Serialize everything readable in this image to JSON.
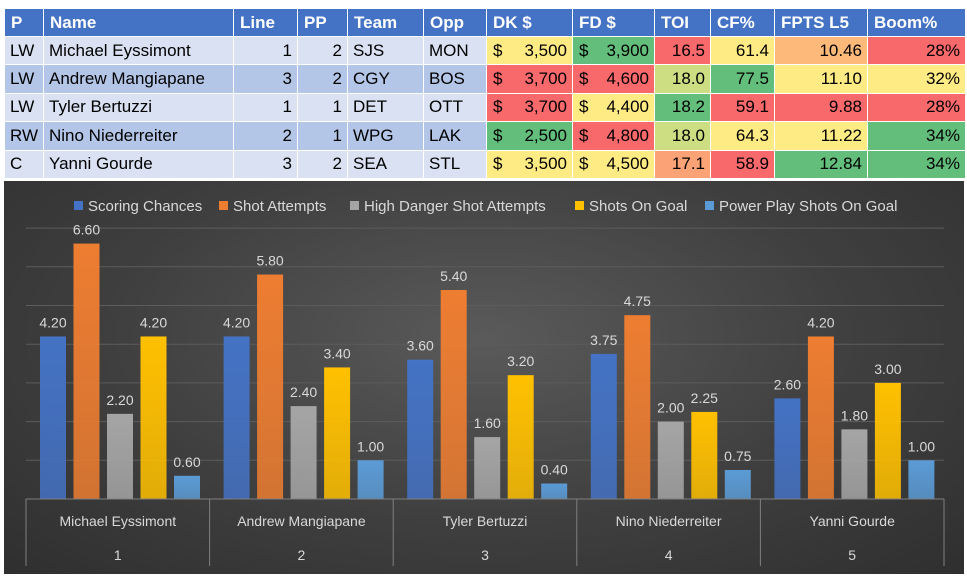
{
  "table": {
    "headers": [
      "P",
      "Name",
      "Line",
      "PP",
      "Team",
      "Opp",
      "DK $",
      "FD $",
      "TOI",
      "CF%",
      "FPTS L5",
      "Boom%"
    ],
    "rows": [
      {
        "pos": "LW",
        "name": "Michael Eyssimont",
        "line": "1",
        "pp": "2",
        "team": "SJS",
        "opp": "MON",
        "dk": "3,500",
        "fd": "3,900",
        "toi": "16.5",
        "cf": "61.4",
        "fpts": "10.46",
        "boom": "28%"
      },
      {
        "pos": "LW",
        "name": "Andrew Mangiapane",
        "line": "3",
        "pp": "2",
        "team": "CGY",
        "opp": "BOS",
        "dk": "3,700",
        "fd": "4,600",
        "toi": "18.0",
        "cf": "77.5",
        "fpts": "11.10",
        "boom": "32%"
      },
      {
        "pos": "LW",
        "name": "Tyler Bertuzzi",
        "line": "1",
        "pp": "1",
        "team": "DET",
        "opp": "OTT",
        "dk": "3,700",
        "fd": "4,400",
        "toi": "18.2",
        "cf": "59.1",
        "fpts": "9.88",
        "boom": "28%"
      },
      {
        "pos": "RW",
        "name": "Nino Niederreiter",
        "line": "2",
        "pp": "1",
        "team": "WPG",
        "opp": "LAK",
        "dk": "2,500",
        "fd": "4,800",
        "toi": "18.0",
        "cf": "64.3",
        "fpts": "11.22",
        "boom": "34%"
      },
      {
        "pos": "C",
        "name": "Yanni Gourde",
        "line": "3",
        "pp": "2",
        "team": "SEA",
        "opp": "STL",
        "dk": "3,500",
        "fd": "4,500",
        "toi": "17.1",
        "cf": "58.9",
        "fpts": "12.84",
        "boom": "34%"
      }
    ],
    "currency_symbol": "$",
    "cell_colors": {
      "dk": [
        "#ffeb84",
        "#f8696b",
        "#f8696b",
        "#63be7b",
        "#ffeb84"
      ],
      "fd": [
        "#63be7b",
        "#f8696b",
        "#ffeb84",
        "#f8696b",
        "#ffeb84"
      ],
      "toi": [
        "#f8696b",
        "#cddd82",
        "#63be7b",
        "#cddd82",
        "#fba276"
      ],
      "cf": [
        "#ffeb84",
        "#63be7b",
        "#f8696b",
        "#ffeb84",
        "#f8696b"
      ],
      "fpts": [
        "#fcb979",
        "#ffeb84",
        "#f8696b",
        "#ffeb84",
        "#63be7b"
      ],
      "boom": [
        "#f8696b",
        "#ffeb84",
        "#f8696b",
        "#63be7b",
        "#63be7b"
      ]
    }
  },
  "chart_data": {
    "type": "bar",
    "title": "",
    "xlabel": "",
    "ylabel": "",
    "ylim": [
      0,
      7
    ],
    "grid": true,
    "legend_position": "top",
    "categories": [
      "Michael Eyssimont",
      "Andrew Mangiapane",
      "Tyler Bertuzzi",
      "Nino Niederreiter",
      "Yanni Gourde"
    ],
    "category_index": [
      "1",
      "2",
      "3",
      "4",
      "5"
    ],
    "series": [
      {
        "name": "Scoring Chances",
        "color": "#4472c4",
        "values": [
          4.2,
          4.2,
          3.6,
          3.75,
          2.6
        ],
        "labels": [
          "4.20",
          "4.20",
          "3.60",
          "3.75",
          "2.60"
        ]
      },
      {
        "name": "Shot Attempts",
        "color": "#ed7d31",
        "values": [
          6.6,
          5.8,
          5.4,
          4.75,
          4.2
        ],
        "labels": [
          "6.60",
          "5.80",
          "5.40",
          "4.75",
          "4.20"
        ]
      },
      {
        "name": "High Danger Shot Attempts",
        "color": "#a5a5a5",
        "values": [
          2.2,
          2.4,
          1.6,
          2.0,
          1.8
        ],
        "labels": [
          "2.20",
          "2.40",
          "1.60",
          "2.00",
          "1.80"
        ]
      },
      {
        "name": "Shots On Goal",
        "color": "#ffc000",
        "values": [
          4.2,
          3.4,
          3.2,
          2.25,
          3.0
        ],
        "labels": [
          "4.20",
          "3.40",
          "3.20",
          "2.25",
          "3.00"
        ]
      },
      {
        "name": "Power Play Shots On Goal",
        "color": "#5b9bd5",
        "values": [
          0.6,
          1.0,
          0.4,
          0.75,
          1.0
        ],
        "labels": [
          "0.60",
          "1.00",
          "0.40",
          "0.75",
          "1.00"
        ]
      }
    ]
  }
}
